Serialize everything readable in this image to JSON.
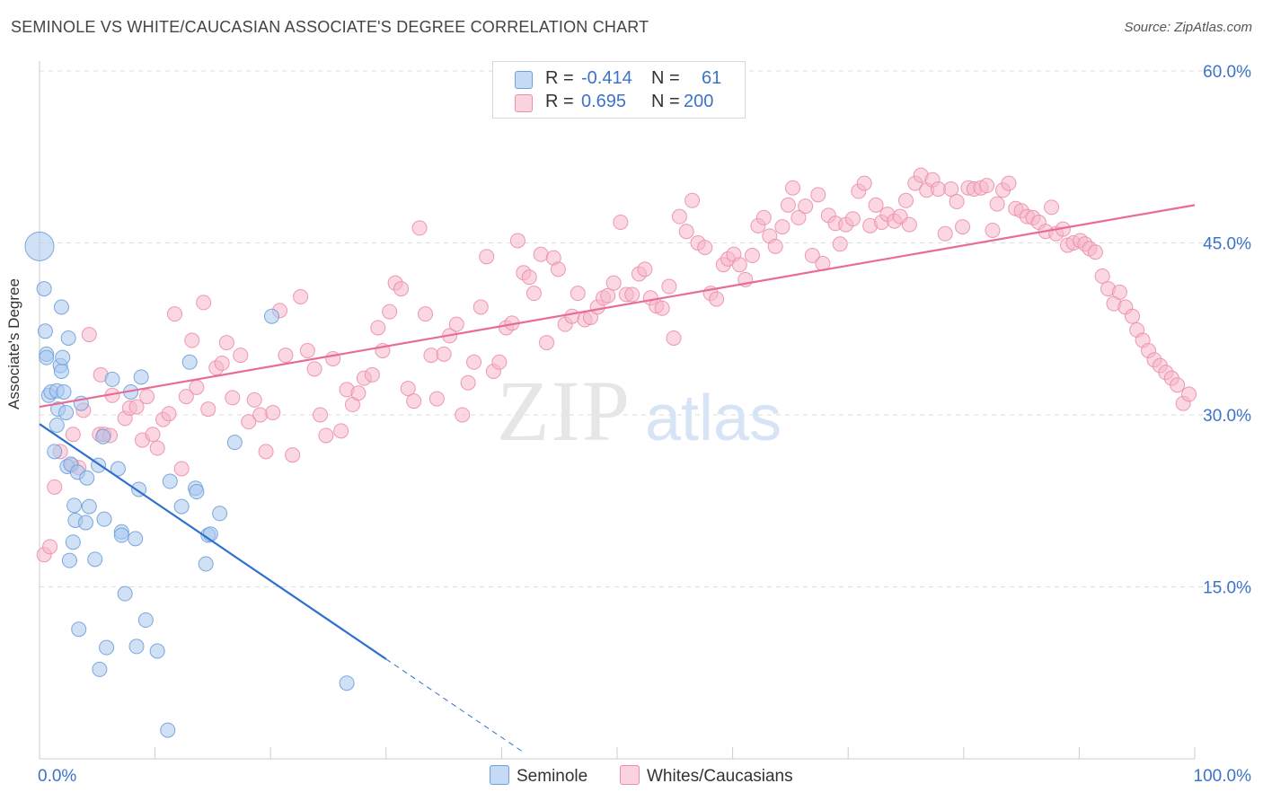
{
  "title": "SEMINOLE VS WHITE/CAUCASIAN ASSOCIATE'S DEGREE CORRELATION CHART",
  "source": "Source: ZipAtlas.com",
  "watermark": {
    "zip": "ZIP",
    "atlas": "atlas"
  },
  "legend": {
    "rows": [
      {
        "r_label": "R =",
        "r_value": "-0.414",
        "n_label": "N =",
        "n_value": "61",
        "color": "#a9c8ef"
      },
      {
        "r_label": "R =",
        "r_value": "0.695",
        "n_label": "N =",
        "n_value": "200",
        "color": "#f6b6c9"
      }
    ]
  },
  "bottom_legend": {
    "seminole": "Seminole",
    "whites": "Whites/Caucasians"
  },
  "chart_data": {
    "type": "scatter",
    "ylabel": "Associate's Degree",
    "xlim": [
      0,
      100
    ],
    "ylim": [
      0,
      60
    ],
    "x_tick_labels": [
      "0.0%",
      "100.0%"
    ],
    "y_ticks": [
      15,
      30,
      45,
      60
    ],
    "y_tick_labels": [
      "15.0%",
      "30.0%",
      "45.0%",
      "60.0%"
    ],
    "grid": true,
    "legend_position": "top-center",
    "colors": {
      "seminole_fill": "#a9c8ef",
      "seminole_stroke": "#6f9fdc",
      "seminole_line": "#2f6fd0",
      "white_fill": "#f6b6c9",
      "white_stroke": "#eb8fab",
      "white_line": "#e86c93",
      "tick_label": "#3b73c8"
    },
    "series": [
      {
        "name": "Seminole",
        "regression": {
          "x0": 0,
          "y0": 29.2,
          "x1": 30,
          "y1": 8.7,
          "dash_to_x": 42
        },
        "points": [
          [
            0,
            44.7,
            "big"
          ],
          [
            0.4,
            41
          ],
          [
            0.5,
            37.3
          ],
          [
            0.6,
            35.3
          ],
          [
            0.6,
            35
          ],
          [
            0.8,
            31.7
          ],
          [
            1.0,
            32
          ],
          [
            1.3,
            26.8
          ],
          [
            1.5,
            32.1
          ],
          [
            1.5,
            29.1
          ],
          [
            1.6,
            30.5
          ],
          [
            1.8,
            34.3
          ],
          [
            1.9,
            33.8
          ],
          [
            1.9,
            39.4
          ],
          [
            2.0,
            35
          ],
          [
            2.1,
            32
          ],
          [
            2.3,
            30.2
          ],
          [
            2.4,
            25.5
          ],
          [
            2.5,
            36.7
          ],
          [
            2.6,
            17.3
          ],
          [
            2.7,
            25.7
          ],
          [
            2.9,
            18.9
          ],
          [
            3.0,
            22.1
          ],
          [
            3.1,
            20.8
          ],
          [
            3.3,
            25
          ],
          [
            3.4,
            11.3
          ],
          [
            3.6,
            31
          ],
          [
            4.0,
            20.6
          ],
          [
            4.1,
            24.5
          ],
          [
            4.3,
            22
          ],
          [
            4.8,
            17.4
          ],
          [
            5.1,
            25.6
          ],
          [
            5.2,
            7.8
          ],
          [
            5.5,
            28.1
          ],
          [
            5.6,
            20.9
          ],
          [
            5.8,
            9.7
          ],
          [
            6.3,
            33.1
          ],
          [
            6.8,
            25.3
          ],
          [
            7.1,
            19.8
          ],
          [
            7.1,
            19.5
          ],
          [
            7.4,
            14.4
          ],
          [
            7.9,
            32
          ],
          [
            8.3,
            19.2
          ],
          [
            8.4,
            9.8
          ],
          [
            8.6,
            23.5
          ],
          [
            8.8,
            33.3
          ],
          [
            9.2,
            12.1
          ],
          [
            10.2,
            9.4
          ],
          [
            11.1,
            2.5
          ],
          [
            11.3,
            24.2
          ],
          [
            12.3,
            22
          ],
          [
            13,
            34.6
          ],
          [
            13.5,
            23.6
          ],
          [
            13.6,
            23.3
          ],
          [
            14.4,
            17
          ],
          [
            14.6,
            19.5
          ],
          [
            14.8,
            19.6
          ],
          [
            15.6,
            21.4
          ],
          [
            16.9,
            27.6
          ],
          [
            20.1,
            38.6
          ],
          [
            26.6,
            6.6
          ]
        ]
      },
      {
        "name": "Whites/Caucasians",
        "regression": {
          "x0": 0,
          "y0": 30.7,
          "x1": 100,
          "y1": 48.3
        },
        "points": [
          [
            0.4,
            17.8
          ],
          [
            0.9,
            18.5
          ],
          [
            1.3,
            23.7
          ],
          [
            1.8,
            26.8
          ],
          [
            2.8,
            25.6
          ],
          [
            2.9,
            28.3
          ],
          [
            3.4,
            25.4
          ],
          [
            3.8,
            30.4
          ],
          [
            4.3,
            37
          ],
          [
            5.2,
            28.3
          ],
          [
            5.3,
            33.5
          ],
          [
            5.6,
            28.3
          ],
          [
            6.1,
            28.2
          ],
          [
            6.3,
            31.7
          ],
          [
            7.4,
            29.7
          ],
          [
            7.8,
            30.6
          ],
          [
            8.4,
            30.7
          ],
          [
            8.9,
            27.8
          ],
          [
            9.3,
            31.6
          ],
          [
            9.8,
            28.3
          ],
          [
            10.2,
            27.1
          ],
          [
            10.7,
            29.6
          ],
          [
            11.2,
            30.1
          ],
          [
            11.7,
            38.8
          ],
          [
            12.3,
            25.3
          ],
          [
            12.7,
            31.6
          ],
          [
            13.2,
            36.5
          ],
          [
            13.6,
            32.4
          ],
          [
            14.2,
            39.8
          ],
          [
            14.6,
            30.5
          ],
          [
            15.3,
            34.1
          ],
          [
            15.8,
            34.5
          ],
          [
            16.2,
            36.3
          ],
          [
            16.7,
            31.5
          ],
          [
            17.4,
            35.2
          ],
          [
            18.1,
            29.4
          ],
          [
            18.6,
            31.3
          ],
          [
            19.1,
            30
          ],
          [
            19.6,
            26.8
          ],
          [
            20.2,
            30.2
          ],
          [
            20.8,
            39.1
          ],
          [
            21.3,
            35.2
          ],
          [
            21.9,
            26.5
          ],
          [
            22.6,
            40.3
          ],
          [
            23.2,
            35.6
          ],
          [
            23.8,
            34
          ],
          [
            24.3,
            30
          ],
          [
            24.8,
            28.2
          ],
          [
            25.4,
            34.9
          ],
          [
            26.1,
            28.6
          ],
          [
            26.6,
            32.2
          ],
          [
            27.1,
            30.9
          ],
          [
            27.6,
            31.9
          ],
          [
            28.1,
            33.2
          ],
          [
            28.8,
            33.5
          ],
          [
            29.3,
            37.6
          ],
          [
            29.7,
            35.6
          ],
          [
            30.3,
            39
          ],
          [
            30.8,
            41.5
          ],
          [
            31.3,
            41
          ],
          [
            31.9,
            32.3
          ],
          [
            32.4,
            31.2
          ],
          [
            32.9,
            46.3
          ],
          [
            33.4,
            38.8
          ],
          [
            33.9,
            35.2
          ],
          [
            34.4,
            31.4
          ],
          [
            35,
            35.3
          ],
          [
            35.5,
            36.9
          ],
          [
            36.1,
            37.9
          ],
          [
            36.6,
            30
          ],
          [
            37.1,
            32.8
          ],
          [
            37.6,
            34.6
          ],
          [
            38.2,
            39.4
          ],
          [
            38.7,
            43.8
          ],
          [
            39.3,
            33.8
          ],
          [
            39.8,
            34.6
          ],
          [
            40.4,
            37.6
          ],
          [
            40.9,
            38
          ],
          [
            41.4,
            45.2
          ],
          [
            41.9,
            42.4
          ],
          [
            42.4,
            42
          ],
          [
            42.8,
            40.6
          ],
          [
            43.4,
            44
          ],
          [
            43.9,
            36.3
          ],
          [
            44.5,
            43.7
          ],
          [
            44.9,
            42.7
          ],
          [
            45.5,
            37.9
          ],
          [
            46.1,
            38.6
          ],
          [
            46.6,
            40.6
          ],
          [
            47.2,
            38.3
          ],
          [
            47.7,
            38.5
          ],
          [
            48.3,
            39.4
          ],
          [
            48.8,
            40.2
          ],
          [
            49.2,
            40.4
          ],
          [
            49.7,
            41.5
          ],
          [
            50.3,
            46.8
          ],
          [
            50.8,
            40.5
          ],
          [
            51.3,
            40.5
          ],
          [
            51.9,
            42.3
          ],
          [
            52.4,
            42.7
          ],
          [
            52.9,
            40.2
          ],
          [
            53.4,
            39.5
          ],
          [
            53.9,
            39.3
          ],
          [
            54.5,
            41.2
          ],
          [
            54.9,
            36.7
          ],
          [
            55.4,
            47.3
          ],
          [
            56,
            46
          ],
          [
            56.5,
            48.7
          ],
          [
            57,
            45
          ],
          [
            57.6,
            44.6
          ],
          [
            58.1,
            40.6
          ],
          [
            58.6,
            40.1
          ],
          [
            59.2,
            43.1
          ],
          [
            59.6,
            43.6
          ],
          [
            60.1,
            44
          ],
          [
            60.6,
            43.1
          ],
          [
            61.1,
            41.8
          ],
          [
            61.7,
            43.9
          ],
          [
            62.2,
            46.5
          ],
          [
            62.7,
            47.2
          ],
          [
            63.2,
            45.6
          ],
          [
            63.7,
            44.7
          ],
          [
            64.3,
            46.4
          ],
          [
            64.8,
            48.3
          ],
          [
            65.2,
            49.8
          ],
          [
            65.7,
            47.2
          ],
          [
            66.3,
            48.2
          ],
          [
            66.9,
            43.9
          ],
          [
            67.4,
            49.2
          ],
          [
            67.8,
            43.2
          ],
          [
            68.3,
            47.4
          ],
          [
            68.9,
            46.7
          ],
          [
            69.3,
            44.9
          ],
          [
            69.8,
            46.6
          ],
          [
            70.4,
            47.1
          ],
          [
            70.9,
            49.5
          ],
          [
            71.4,
            50.2
          ],
          [
            71.9,
            46.5
          ],
          [
            72.4,
            48.3
          ],
          [
            72.9,
            46.8
          ],
          [
            73.4,
            47.5
          ],
          [
            74,
            46.9
          ],
          [
            74.5,
            47.3
          ],
          [
            75,
            48.7
          ],
          [
            75.3,
            46.6
          ],
          [
            75.8,
            50.2
          ],
          [
            76.3,
            50.9
          ],
          [
            76.8,
            49.6
          ],
          [
            77.3,
            50.5
          ],
          [
            77.8,
            49.7
          ],
          [
            78.4,
            45.8
          ],
          [
            78.9,
            49.7
          ],
          [
            79.4,
            48.6
          ],
          [
            79.9,
            46.4
          ],
          [
            80.4,
            49.8
          ],
          [
            80.9,
            49.7
          ],
          [
            81.5,
            49.8
          ],
          [
            82,
            50
          ],
          [
            82.5,
            46.1
          ],
          [
            82.9,
            48.4
          ],
          [
            83.4,
            49.6
          ],
          [
            83.9,
            50.2
          ],
          [
            84.5,
            48
          ],
          [
            85,
            47.8
          ],
          [
            85.5,
            47.3
          ],
          [
            86,
            47.2
          ],
          [
            86.5,
            46.8
          ],
          [
            87.1,
            46
          ],
          [
            87.6,
            48.1
          ],
          [
            88,
            45.8
          ],
          [
            88.6,
            46.2
          ],
          [
            89,
            44.8
          ],
          [
            89.5,
            45
          ],
          [
            90.1,
            45.2
          ],
          [
            90.5,
            44.9
          ],
          [
            90.9,
            44.5
          ],
          [
            91.4,
            44.2
          ],
          [
            92,
            42.1
          ],
          [
            92.5,
            41
          ],
          [
            93,
            39.7
          ],
          [
            93.5,
            40.7
          ],
          [
            94,
            39.4
          ],
          [
            94.6,
            38.6
          ],
          [
            95,
            37.4
          ],
          [
            95.5,
            36.5
          ],
          [
            96,
            35.6
          ],
          [
            96.5,
            34.8
          ],
          [
            97,
            34.3
          ],
          [
            97.5,
            33.7
          ],
          [
            98,
            33.2
          ],
          [
            98.5,
            32.6
          ],
          [
            99,
            31
          ],
          [
            99.5,
            31.8
          ]
        ]
      }
    ]
  }
}
